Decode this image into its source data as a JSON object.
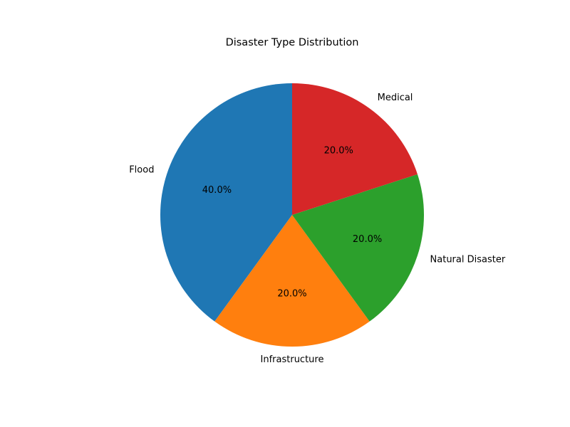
{
  "chart_data": {
    "type": "pie",
    "title": "Disaster Type Distribution",
    "categories": [
      "Flood",
      "Infrastructure",
      "Natural Disaster",
      "Medical"
    ],
    "values": [
      40,
      20,
      20,
      20
    ],
    "percent_labels": [
      "40.0%",
      "20.0%",
      "20.0%",
      "20.0%"
    ],
    "colors": [
      "#1f77b4",
      "#ff7f0e",
      "#2ca02c",
      "#d62728"
    ],
    "start_angle_deg": 90,
    "direction": "counterclockwise",
    "legend": "none"
  }
}
